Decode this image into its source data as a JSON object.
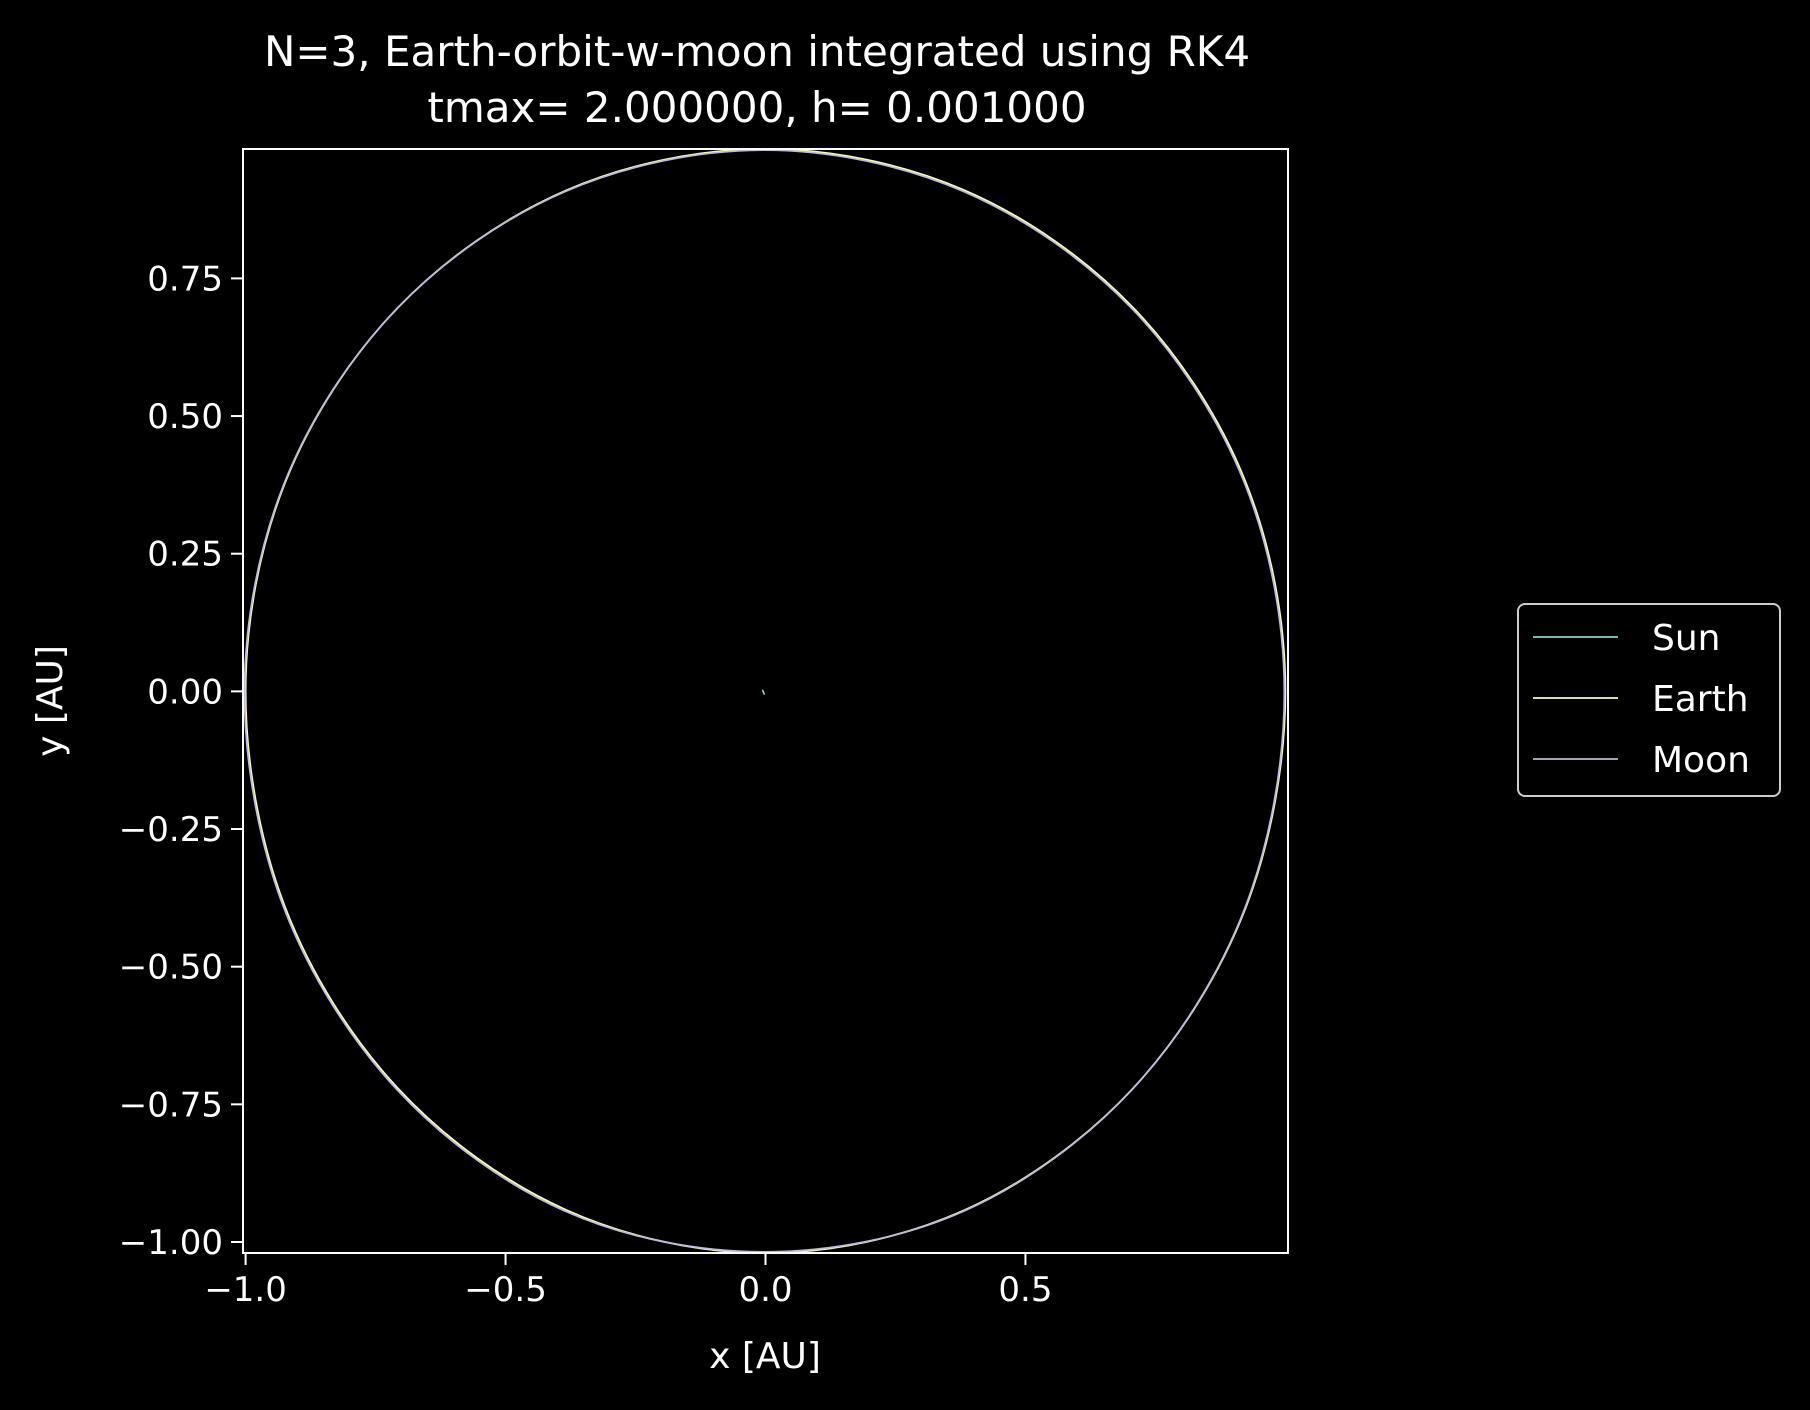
{
  "chart_data": {
    "type": "line",
    "title": "N=3, Earth-orbit-w-moon integrated using RK4",
    "subtitle": "tmax= 2.000000, h= 0.001000",
    "xlabel": "x [AU]",
    "ylabel": "y [AU]",
    "xlim": [
      -1.005,
      1.005
    ],
    "ylim": [
      -1.02,
      0.985
    ],
    "xticks": [
      -1.0,
      -0.5,
      0.0,
      0.5
    ],
    "xtick_labels": [
      "−1.0",
      "−0.5",
      "0.0",
      "0.5"
    ],
    "yticks": [
      -1.0,
      -0.75,
      -0.5,
      -0.25,
      0.0,
      0.25,
      0.5,
      0.75
    ],
    "ytick_labels": [
      "−1.00",
      "−0.75",
      "−0.50",
      "−0.25",
      "0.00",
      "0.25",
      "0.50",
      "0.75"
    ],
    "grid": false,
    "legend_placement": "outside-right",
    "background": "#000000",
    "series": [
      {
        "name": "Sun",
        "color": "#8dd3c7",
        "x": [
          -0.006,
          -0.002
        ],
        "y": [
          0.003,
          -0.006
        ]
      },
      {
        "name": "Earth",
        "color": "#ffffb3",
        "x": [
          1.0,
          0.924,
          0.707,
          0.383,
          0.0,
          -0.383,
          -0.707,
          -0.924,
          -1.0,
          -0.924,
          -0.707,
          -0.383,
          0.0,
          0.383,
          0.707,
          0.924,
          1.0
        ],
        "y": [
          0.0,
          0.379,
          0.697,
          0.91,
          0.985,
          0.91,
          0.697,
          0.379,
          0.0,
          -0.392,
          -0.721,
          -0.942,
          -1.02,
          -0.942,
          -0.721,
          -0.392,
          0.0
        ]
      },
      {
        "name": "Moon",
        "color": "#bebada",
        "x": [
          0.998,
          0.922,
          0.705,
          0.381,
          -0.002,
          -0.385,
          -0.709,
          -0.926,
          -1.002,
          -0.926,
          -0.709,
          -0.385,
          -0.002,
          0.381,
          0.705,
          0.922,
          0.998
        ],
        "y": [
          -0.002,
          0.377,
          0.695,
          0.908,
          0.983,
          0.908,
          0.695,
          0.377,
          -0.002,
          -0.394,
          -0.723,
          -0.944,
          -1.018,
          -0.944,
          -0.723,
          -0.394,
          -0.002
        ]
      }
    ]
  }
}
